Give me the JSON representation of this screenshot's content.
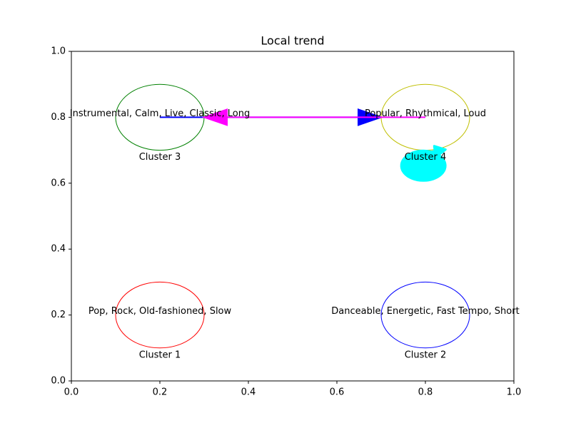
{
  "chart_data": {
    "type": "cluster-map",
    "title": "Local trend",
    "xlim": [
      0,
      1
    ],
    "ylim": [
      0,
      1
    ],
    "xticks": [
      {
        "value": 0,
        "label": "0.0"
      },
      {
        "value": 0.2,
        "label": "0.2"
      },
      {
        "value": 0.4,
        "label": "0.4"
      },
      {
        "value": 0.6,
        "label": "0.6"
      },
      {
        "value": 0.8,
        "label": "0.8"
      },
      {
        "value": 1,
        "label": "1.0"
      }
    ],
    "yticks": [
      {
        "value": 0,
        "label": "0.0"
      },
      {
        "value": 0.2,
        "label": "0.2"
      },
      {
        "value": 0.4,
        "label": "0.4"
      },
      {
        "value": 0.6,
        "label": "0.6"
      },
      {
        "value": 0.8,
        "label": "0.8"
      },
      {
        "value": 1,
        "label": "1.0"
      }
    ],
    "clusters": [
      {
        "name": "Cluster 1",
        "description": "Pop, Rock, Old-fashioned, Slow",
        "x": 0.2,
        "y": 0.2,
        "radius": 0.1,
        "color": "#ff0000"
      },
      {
        "name": "Cluster 2",
        "description": "Danceable, Energetic, Fast Tempo, Short",
        "x": 0.8,
        "y": 0.2,
        "radius": 0.1,
        "color": "#0000ff"
      },
      {
        "name": "Cluster 3",
        "description": "Instrumental, Calm, Live, Classic, Long",
        "x": 0.2,
        "y": 0.8,
        "radius": 0.1,
        "color": "#008000"
      },
      {
        "name": "Cluster 4",
        "description": "Popular, Rhythmical, Loud",
        "x": 0.8,
        "y": 0.8,
        "radius": 0.1,
        "color": "#bfbf00"
      }
    ],
    "arrows": [
      {
        "x": 0.2,
        "y": 0.8,
        "dx": 0.5,
        "dy": 0,
        "color": "#0000ff"
      },
      {
        "x": 0.8,
        "y": 0.8,
        "dx": -0.5,
        "dy": 0,
        "color": "#ff00ff"
      }
    ],
    "loops": [
      {
        "x": 0.8,
        "y": 0.65,
        "color": "#00ffff"
      }
    ]
  }
}
